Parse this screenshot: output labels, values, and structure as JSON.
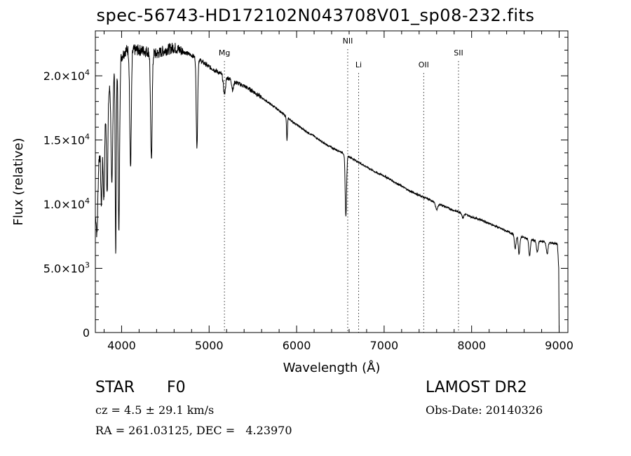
{
  "title": "spec-56743-HD172102N043708V01_sp08-232.fits",
  "chart_data": {
    "type": "line",
    "xlabel": "Wavelength (Å)",
    "ylabel": "Flux (relative)",
    "xlim": [
      3700,
      9100
    ],
    "ylim": [
      0,
      23500
    ],
    "x_ticks": [
      "4000",
      "5000",
      "6000",
      "7000",
      "8000",
      "9000"
    ],
    "y_ticks": [
      {
        "base": "0",
        "exp": ""
      },
      {
        "base": "5.0×10",
        "exp": "3"
      },
      {
        "base": "1.0×10",
        "exp": "4"
      },
      {
        "base": "1.5×10",
        "exp": "4"
      },
      {
        "base": "2.0×10",
        "exp": "4"
      }
    ],
    "x_tick_values": [
      4000,
      5000,
      6000,
      7000,
      8000,
      9000
    ],
    "y_tick_values": [
      0,
      5000,
      10000,
      15000,
      20000
    ],
    "lines": [
      {
        "label": "Mg",
        "x": 5175
      },
      {
        "label": "NII",
        "x": 6584
      },
      {
        "label": "Li",
        "x": 6708
      },
      {
        "label": "OII",
        "x": 7452
      },
      {
        "label": "SII",
        "x": 7850
      }
    ],
    "continuum": [
      [
        3700,
        9000
      ],
      [
        3740,
        13500
      ],
      [
        3780,
        15500
      ],
      [
        3820,
        17500
      ],
      [
        3860,
        19000
      ],
      [
        3900,
        20000
      ],
      [
        3950,
        21000
      ],
      [
        4000,
        21500
      ],
      [
        4050,
        22000
      ],
      [
        4100,
        22000
      ],
      [
        4200,
        22000
      ],
      [
        4300,
        21900
      ],
      [
        4400,
        21700
      ],
      [
        4500,
        22000
      ],
      [
        4600,
        22200
      ],
      [
        4700,
        21900
      ],
      [
        4800,
        21600
      ],
      [
        4900,
        21200
      ],
      [
        5000,
        20700
      ],
      [
        5100,
        20300
      ],
      [
        5200,
        19900
      ],
      [
        5300,
        19500
      ],
      [
        5400,
        19200
      ],
      [
        5500,
        18800
      ],
      [
        5600,
        18300
      ],
      [
        5700,
        17800
      ],
      [
        5800,
        17300
      ],
      [
        5900,
        16700
      ],
      [
        6000,
        16200
      ],
      [
        6100,
        15700
      ],
      [
        6200,
        15300
      ],
      [
        6300,
        14800
      ],
      [
        6400,
        14400
      ],
      [
        6500,
        14100
      ],
      [
        6600,
        13700
      ],
      [
        6700,
        13300
      ],
      [
        6800,
        12900
      ],
      [
        6900,
        12500
      ],
      [
        7000,
        12200
      ],
      [
        7100,
        11800
      ],
      [
        7200,
        11400
      ],
      [
        7300,
        11000
      ],
      [
        7400,
        10700
      ],
      [
        7500,
        10400
      ],
      [
        7600,
        10100
      ],
      [
        7700,
        9800
      ],
      [
        7800,
        9500
      ],
      [
        7900,
        9300
      ],
      [
        8000,
        9000
      ],
      [
        8100,
        8800
      ],
      [
        8200,
        8500
      ],
      [
        8300,
        8200
      ],
      [
        8400,
        7900
      ],
      [
        8500,
        7600
      ],
      [
        8600,
        7400
      ],
      [
        8700,
        7200
      ],
      [
        8800,
        7100
      ],
      [
        8900,
        7000
      ],
      [
        8980,
        6900
      ],
      [
        8995,
        5000
      ],
      [
        9000,
        0
      ]
    ],
    "absorption": [
      {
        "x": 3720,
        "depth": 3500,
        "width": 8
      },
      {
        "x": 3770,
        "depth": 5000,
        "width": 8
      },
      {
        "x": 3798,
        "depth": 6000,
        "width": 8
      },
      {
        "x": 3835,
        "depth": 7000,
        "width": 8
      },
      {
        "x": 3889,
        "depth": 8500,
        "width": 9
      },
      {
        "x": 3933,
        "depth": 14500,
        "width": 6
      },
      {
        "x": 3969,
        "depth": 13500,
        "width": 8
      },
      {
        "x": 4102,
        "depth": 9000,
        "width": 9
      },
      {
        "x": 4340,
        "depth": 8500,
        "width": 9
      },
      {
        "x": 4861,
        "depth": 7000,
        "width": 8
      },
      {
        "x": 5175,
        "depth": 1400,
        "width": 12
      },
      {
        "x": 5270,
        "depth": 700,
        "width": 10
      },
      {
        "x": 5890,
        "depth": 1800,
        "width": 5
      },
      {
        "x": 6563,
        "depth": 4800,
        "width": 8
      },
      {
        "x": 7600,
        "depth": 500,
        "width": 14
      },
      {
        "x": 7900,
        "depth": 350,
        "width": 10
      },
      {
        "x": 8498,
        "depth": 1100,
        "width": 9
      },
      {
        "x": 8542,
        "depth": 1400,
        "width": 9
      },
      {
        "x": 8662,
        "depth": 1300,
        "width": 9
      },
      {
        "x": 8750,
        "depth": 900,
        "width": 10
      },
      {
        "x": 8863,
        "depth": 900,
        "width": 10
      }
    ]
  },
  "info": {
    "class_label": "STAR",
    "subclass": "F0",
    "survey": "LAMOST DR2",
    "cz": "cz = 4.5 ± 29.1 km/s",
    "obs_date": "Obs-Date: 20140326",
    "radec": "RA = 261.03125, DEC =   4.23970"
  }
}
